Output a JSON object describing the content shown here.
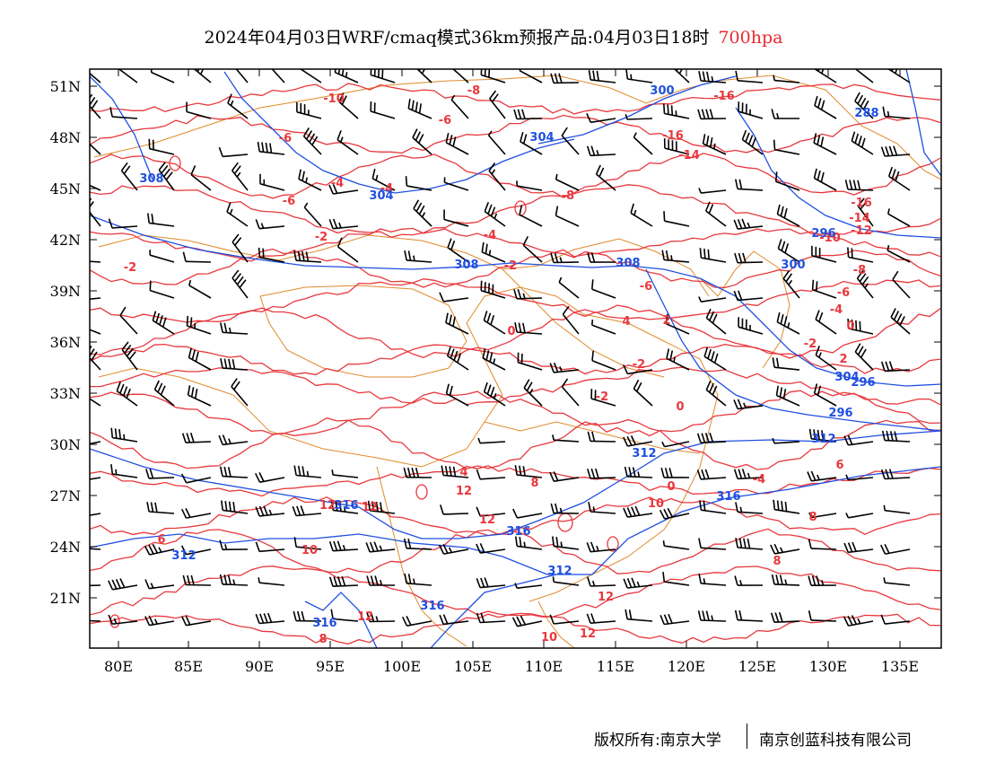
{
  "title": {
    "main": "2024年04月03日WRF/cmaq模式36km预报产品:04月03日18时",
    "level": "700hpa"
  },
  "map": {
    "lat_labels": [
      "51N",
      "48N",
      "45N",
      "42N",
      "39N",
      "36N",
      "33N",
      "30N",
      "27N",
      "24N",
      "21N"
    ],
    "lon_labels": [
      "80E",
      "85E",
      "90E",
      "95E",
      "100E",
      "105E",
      "110E",
      "115E",
      "120E",
      "125E",
      "130E",
      "135E"
    ],
    "colors": {
      "temperature": "#e8383d",
      "geopotential": "#1f4fe0",
      "boundary": "#e08a2c",
      "barb": "#000000"
    },
    "temperature_labels": [
      "-10",
      "-8",
      "-6",
      "-8",
      "-6",
      "-6",
      "-4",
      "-4",
      "-2",
      "-2",
      "-2",
      "-2",
      "0",
      "-4",
      "-6",
      "-16",
      "-16",
      "-14",
      "-16",
      "-14",
      "-12",
      "-10",
      "-8",
      "-6",
      "-4",
      "-2",
      "0",
      "2",
      "4",
      "2",
      "-2",
      "0",
      "4",
      "-4",
      "0",
      "8",
      "6",
      "10",
      "12",
      "8",
      "12",
      "12",
      "10",
      "12",
      "12",
      "12",
      "10",
      "6",
      "8",
      "12",
      "8"
    ],
    "height_labels": [
      "300",
      "288",
      "304",
      "308",
      "304",
      "308",
      "308",
      "300",
      "296",
      "304",
      "296",
      "312",
      "312",
      "316",
      "312",
      "312",
      "316",
      "316",
      "316",
      "316",
      "296"
    ]
  },
  "copyright": {
    "left": "版权所有:南京大学",
    "right": "南京创蓝科技有限公司"
  }
}
